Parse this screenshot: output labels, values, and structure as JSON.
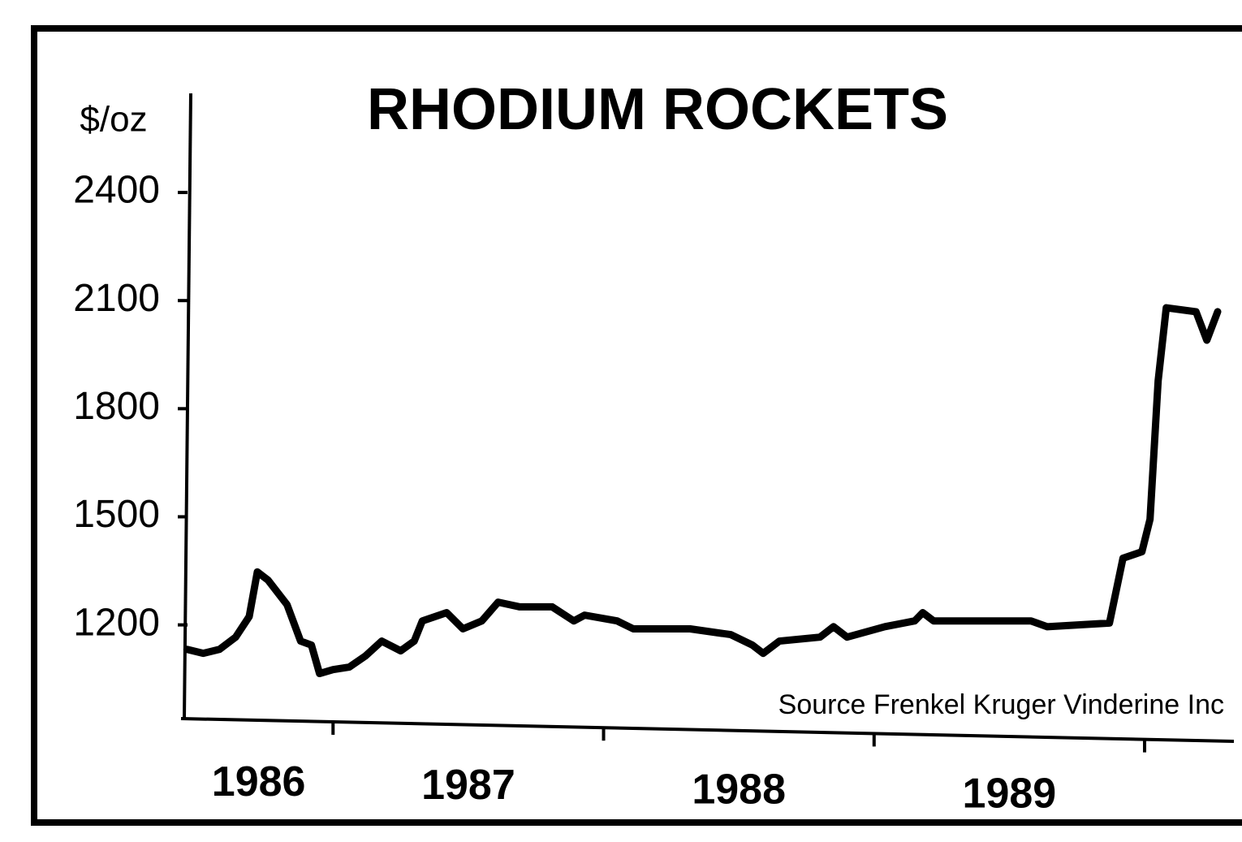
{
  "chart_data": {
    "type": "line",
    "title": "RHODIUM ROCKETS",
    "y_label": "$/oz",
    "source": "Source  Frenkel Kruger Vinderine Inc",
    "xlim": [
      1986.45,
      1990.33
    ],
    "xticks": [
      {
        "value": 1986,
        "label": "1986"
      },
      {
        "value": 1987,
        "label": "1987"
      },
      {
        "value": 1988,
        "label": "1988"
      },
      {
        "value": 1989,
        "label": "1989"
      }
    ],
    "xtick_marks": [
      1987,
      1988,
      1989,
      1990
    ],
    "ylim": [
      940,
      2675
    ],
    "yticks": [
      1200,
      1500,
      1800,
      2100,
      2400
    ],
    "series": [
      {
        "color": "#000000",
        "x": [
          1986.46,
          1986.52,
          1986.58,
          1986.64,
          1986.69,
          1986.72,
          1986.76,
          1986.83,
          1986.88,
          1986.92,
          1986.95,
          1987.0,
          1987.06,
          1987.12,
          1987.18,
          1987.25,
          1987.3,
          1987.33,
          1987.42,
          1987.48,
          1987.55,
          1987.61,
          1987.69,
          1987.81,
          1987.89,
          1987.93,
          1988.05,
          1988.11,
          1988.32,
          1988.47,
          1988.55,
          1988.59,
          1988.65,
          1988.8,
          1988.85,
          1988.9,
          1989.04,
          1989.15,
          1989.18,
          1989.22,
          1989.58,
          1989.64,
          1989.87,
          1989.92,
          1989.99,
          1990.02,
          1990.05,
          1990.08,
          1990.19,
          1990.23,
          1990.27
        ],
        "values": [
          1132,
          1121,
          1132,
          1166,
          1223,
          1347,
          1324,
          1256,
          1155,
          1144,
          1065,
          1076,
          1083,
          1114,
          1155,
          1128,
          1155,
          1211,
          1234,
          1189,
          1211,
          1263,
          1250,
          1250,
          1211,
          1227,
          1211,
          1189,
          1189,
          1173,
          1144,
          1121,
          1155,
          1166,
          1195,
          1166,
          1195,
          1211,
          1234,
          1211,
          1211,
          1195,
          1205,
          1385,
          1403,
          1493,
          1877,
          2080,
          2069,
          1990,
          2069
        ]
      }
    ]
  }
}
